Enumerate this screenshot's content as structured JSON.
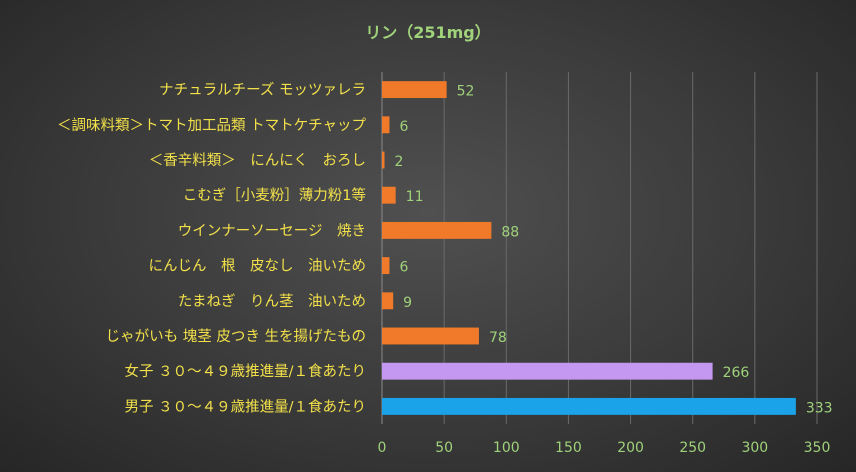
{
  "chart_data": {
    "type": "bar",
    "orientation": "horizontal",
    "title": "リン（251mg）",
    "categories": [
      "男子 ３０～４９歳推進量/１食あたり",
      "女子 ３０～４９歳推進量/１食あたり",
      "じゃがいも 塊茎 皮つき 生を揚げたもの",
      "たまねぎ　りん茎　油いため",
      "にんじん　根　皮なし　油いため",
      "ウインナーソーセージ　焼き",
      "こむぎ［小麦粉］薄力粉1等",
      "＜香辛料類＞　にんにく　おろし",
      "＜調味料類＞トマト加工品類 トマトケチャップ",
      "ナチュラルチーズ モッツァレラ"
    ],
    "values": [
      333,
      266,
      78,
      9,
      6,
      88,
      11,
      2,
      6,
      52
    ],
    "colors": [
      "#1aa3e8",
      "#c497f0",
      "#f07a2a",
      "#f07a2a",
      "#f07a2a",
      "#f07a2a",
      "#f07a2a",
      "#f07a2a",
      "#f07a2a",
      "#f07a2a"
    ],
    "xlim": [
      0,
      350
    ],
    "xticks": [
      0,
      50,
      100,
      150,
      200,
      250,
      300,
      350
    ],
    "grid": "vertical"
  }
}
